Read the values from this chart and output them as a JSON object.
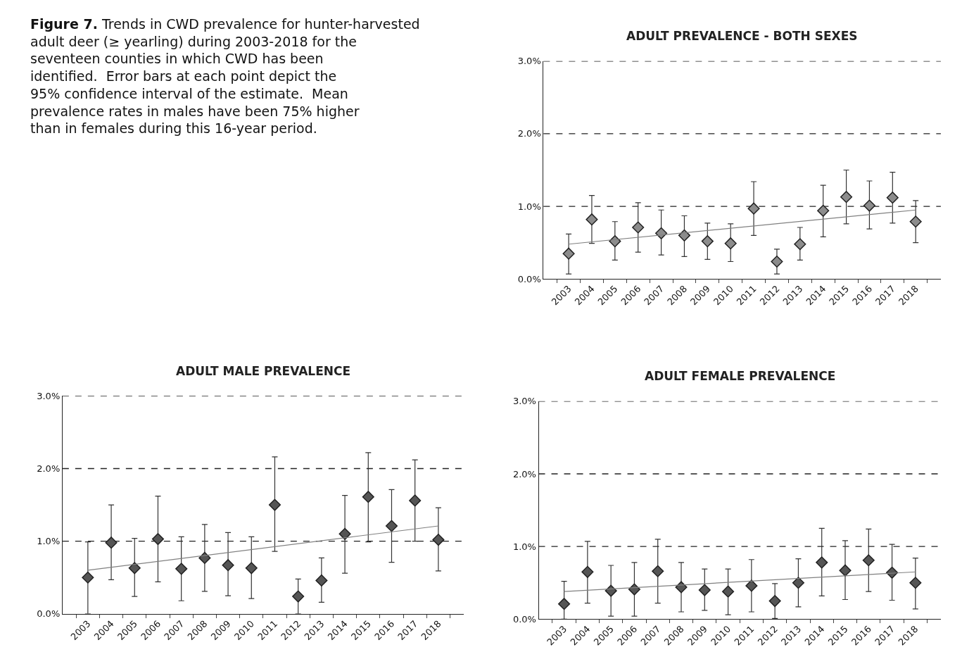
{
  "chart_data": [
    {
      "type": "other",
      "title": "Figure 7.",
      "annotations": [
        "Trends in CWD prevalence for hunter-harvested adult deer (≥ yearling) during 2003-2018 for the seventeen counties in which CWD has been identified.  Error bars at each point depict the 95% confidence interval of the estimate.  Mean prevalence rates in males have been 75% higher than in females during this 16-year period."
      ]
    },
    {
      "type": "scatter",
      "title": "ADULT PREVALENCE - BOTH SEXES",
      "categories": [
        "2003",
        "2004",
        "2005",
        "2006",
        "2007",
        "2008",
        "2009",
        "2010",
        "2011",
        "2012",
        "2013",
        "2014",
        "2015",
        "2016",
        "2017",
        "2018"
      ],
      "ylim": [
        0,
        3
      ],
      "yticks": [
        {
          "value": 0,
          "label": "0.0%"
        },
        {
          "value": 1,
          "label": "1.0%"
        },
        {
          "value": 2,
          "label": "2.0%"
        },
        {
          "value": 3,
          "label": "3.0%"
        }
      ],
      "grid": "y",
      "series": [
        {
          "color": "#8c8c8c",
          "marker": "diamond",
          "values": [
            0.35,
            0.82,
            0.52,
            0.71,
            0.63,
            0.6,
            0.52,
            0.49,
            0.97,
            0.24,
            0.48,
            0.94,
            1.13,
            1.01,
            1.12,
            0.79
          ],
          "errors": [
            [
              0.07,
              0.62
            ],
            [
              0.49,
              1.15
            ],
            [
              0.26,
              0.79
            ],
            [
              0.37,
              1.05
            ],
            [
              0.33,
              0.95
            ],
            [
              0.31,
              0.87
            ],
            [
              0.27,
              0.77
            ],
            [
              0.24,
              0.76
            ],
            [
              0.6,
              1.34
            ],
            [
              0.07,
              0.41
            ],
            [
              0.26,
              0.71
            ],
            [
              0.58,
              1.29
            ],
            [
              0.76,
              1.5
            ],
            [
              0.69,
              1.35
            ],
            [
              0.77,
              1.47
            ],
            [
              0.5,
              1.08
            ]
          ]
        },
        {
          "type": "line",
          "color": "#808080",
          "marker": "none",
          "values": [
            0.48,
            null,
            null,
            null,
            null,
            null,
            null,
            null,
            null,
            null,
            null,
            null,
            null,
            null,
            null,
            0.95
          ]
        }
      ]
    },
    {
      "type": "scatter",
      "title": "ADULT MALE PREVALENCE",
      "categories": [
        "2003",
        "2004",
        "2005",
        "2006",
        "2007",
        "2008",
        "2009",
        "2010",
        "2011",
        "2012",
        "2013",
        "2014",
        "2015",
        "2016",
        "2017",
        "2018"
      ],
      "ylim": [
        0,
        3
      ],
      "yticks": [
        {
          "value": 0,
          "label": "0.0%"
        },
        {
          "value": 1,
          "label": "1.0%"
        },
        {
          "value": 2,
          "label": "2.0%"
        },
        {
          "value": 3,
          "label": "3.0%"
        }
      ],
      "grid": "y",
      "series": [
        {
          "color": "#555555",
          "marker": "diamond",
          "values": [
            0.5,
            0.98,
            0.63,
            1.03,
            0.62,
            0.77,
            0.67,
            0.63,
            1.5,
            0.24,
            0.46,
            1.1,
            1.61,
            1.21,
            1.56,
            1.02
          ],
          "errors": [
            [
              0.0,
              0.99
            ],
            [
              0.47,
              1.5
            ],
            [
              0.24,
              1.04
            ],
            [
              0.44,
              1.62
            ],
            [
              0.18,
              1.06
            ],
            [
              0.31,
              1.23
            ],
            [
              0.25,
              1.12
            ],
            [
              0.21,
              1.06
            ],
            [
              0.86,
              2.16
            ],
            [
              0.0,
              0.48
            ],
            [
              0.16,
              0.77
            ],
            [
              0.56,
              1.63
            ],
            [
              0.99,
              2.22
            ],
            [
              0.71,
              1.71
            ],
            [
              1.0,
              2.12
            ],
            [
              0.59,
              1.46
            ]
          ]
        },
        {
          "type": "line",
          "color": "#808080",
          "marker": "none",
          "values": [
            0.6,
            null,
            null,
            null,
            null,
            null,
            null,
            null,
            null,
            null,
            null,
            null,
            null,
            null,
            null,
            1.21
          ]
        }
      ]
    },
    {
      "type": "scatter",
      "title": "ADULT FEMALE PREVALENCE",
      "categories": [
        "2003",
        "2004",
        "2005",
        "2006",
        "2007",
        "2008",
        "2009",
        "2010",
        "2011",
        "2012",
        "2013",
        "2014",
        "2015",
        "2016",
        "2017",
        "2018"
      ],
      "ylim": [
        0,
        3
      ],
      "yticks": [
        {
          "value": 0,
          "label": "0.0%"
        },
        {
          "value": 1,
          "label": "1.0%"
        },
        {
          "value": 2,
          "label": "2.0%"
        },
        {
          "value": 3,
          "label": "3.0%"
        }
      ],
      "grid": "y",
      "series": [
        {
          "color": "#555555",
          "marker": "diamond",
          "values": [
            0.21,
            0.65,
            0.39,
            0.41,
            0.66,
            0.44,
            0.4,
            0.38,
            0.46,
            0.25,
            0.5,
            0.78,
            0.67,
            0.81,
            0.64,
            0.5
          ],
          "errors": [
            [
              0.0,
              0.52
            ],
            [
              0.22,
              1.07
            ],
            [
              0.04,
              0.74
            ],
            [
              0.04,
              0.78
            ],
            [
              0.22,
              1.1
            ],
            [
              0.1,
              0.78
            ],
            [
              0.12,
              0.69
            ],
            [
              0.06,
              0.69
            ],
            [
              0.1,
              0.82
            ],
            [
              0.01,
              0.49
            ],
            [
              0.17,
              0.83
            ],
            [
              0.32,
              1.25
            ],
            [
              0.27,
              1.08
            ],
            [
              0.38,
              1.24
            ],
            [
              0.26,
              1.03
            ],
            [
              0.14,
              0.84
            ]
          ]
        },
        {
          "type": "line",
          "color": "#808080",
          "marker": "none",
          "values": [
            0.38,
            null,
            null,
            null,
            null,
            null,
            null,
            null,
            null,
            null,
            null,
            null,
            null,
            null,
            null,
            0.65
          ]
        }
      ]
    }
  ]
}
